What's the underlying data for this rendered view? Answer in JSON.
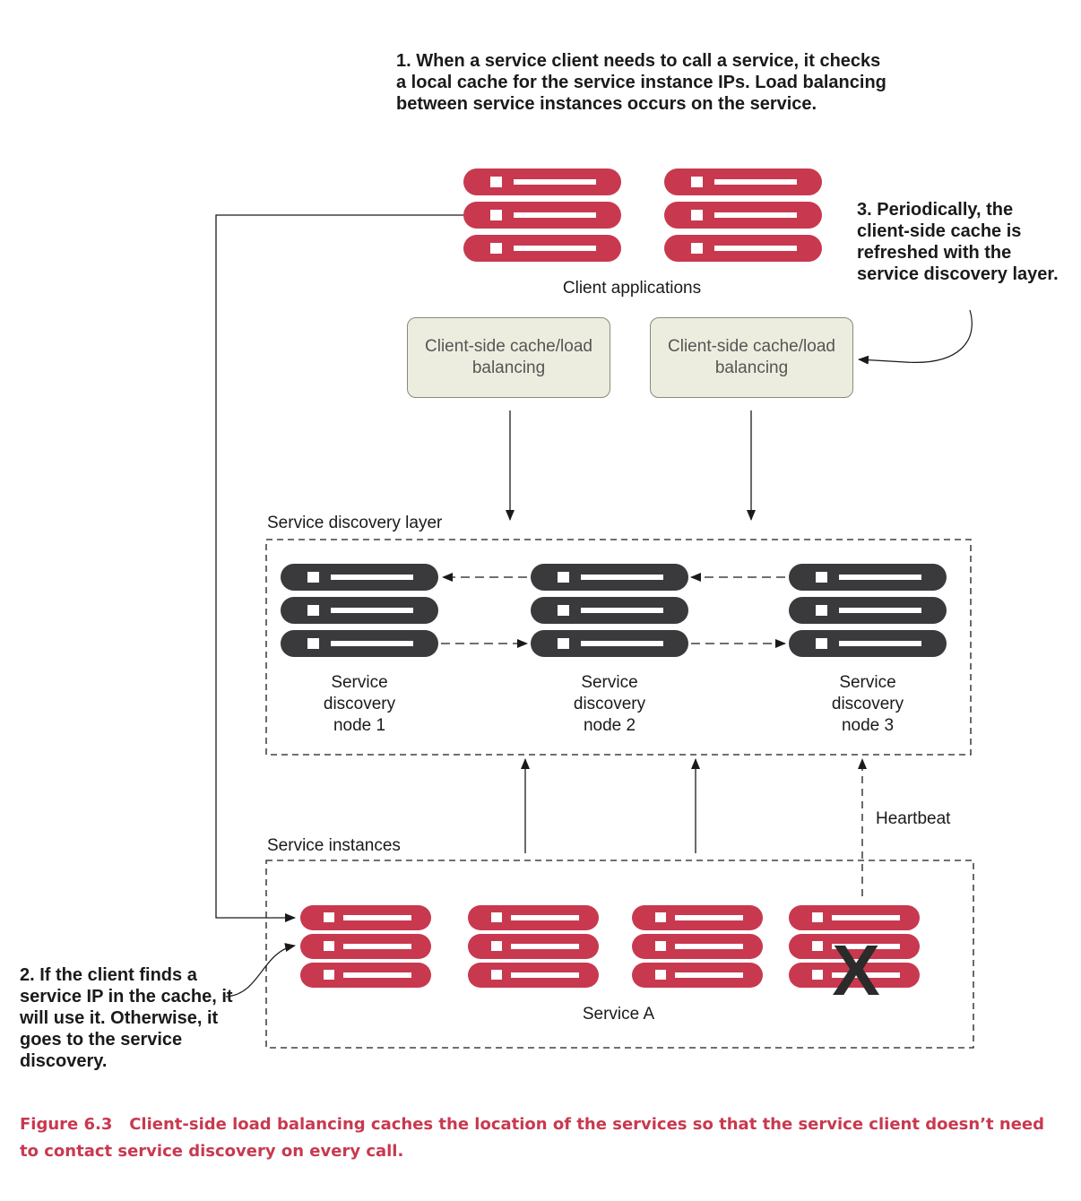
{
  "notes": {
    "note1": "1. When a service client needs to call a service, it checks a local cache for the service instance IPs. Load balancing between service instances occurs on the service.",
    "note2": "2. If the client finds a service IP in the cache, it will use it. Otherwise, it goes to the service discovery.",
    "note3": "3. Periodically, the client-side cache is refreshed with the service discovery layer."
  },
  "labels": {
    "client_applications": "Client applications",
    "cache_box_1": "Client-side cache/load balancing",
    "cache_box_2": "Client-side cache/load balancing",
    "discovery_layer": "Service discovery layer",
    "node1": "Service discovery node 1",
    "node2": "Service discovery node 2",
    "node3": "Service discovery node 3",
    "heartbeat": "Heartbeat",
    "service_instances": "Service instances",
    "service_a": "Service A",
    "failed_mark": "X"
  },
  "caption": {
    "figure": "Figure 6.3",
    "text": "Client-side load balancing caches the location of the services so that the service client doesn’t need to contact service discovery on every call."
  },
  "colors": {
    "client_server": "#c8394f",
    "discovery_server": "#3a3a3c",
    "cache_box_fill": "#ededdf",
    "caption": "#c8394f"
  }
}
